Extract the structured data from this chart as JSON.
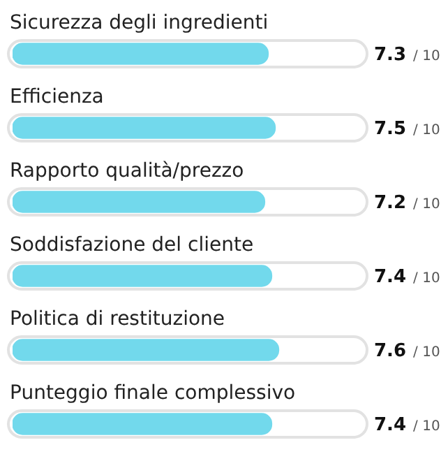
{
  "chart_data": {
    "type": "bar",
    "orientation": "horizontal",
    "categories": [
      "Sicurezza degli ingredienti",
      "Efficienza",
      "Rapporto qualità/prezzo",
      "Soddisfazione del cliente",
      "Politica di restituzione",
      "Punteggio finale complessivo"
    ],
    "values": [
      7.3,
      7.5,
      7.2,
      7.4,
      7.6,
      7.4
    ],
    "data_labels": true,
    "annotations": [
      "/ 10"
    ],
    "color": "#72d9ec",
    "xlim": [
      0,
      10
    ],
    "legend": false
  }
}
